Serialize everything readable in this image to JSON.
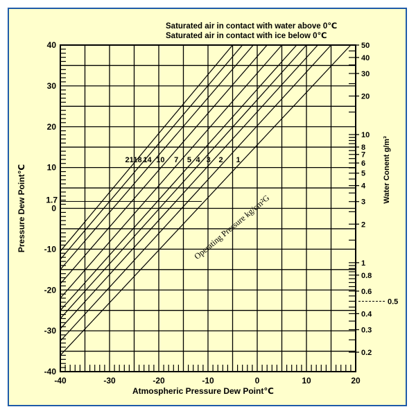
{
  "chart_data": {
    "type": "line",
    "title_lines": [
      "Saturated air in contact with water above 0℃",
      "Saturated air in contact with ice below 0℃"
    ],
    "xlabel": "Atmospheric Pressure Dew Point℃",
    "ylabel": "Pressure Dew Point℃",
    "y2label": "Water Conent g/m³",
    "xlim": [
      -40,
      20
    ],
    "ylim": [
      -40,
      40
    ],
    "x_ticks": [
      "-40",
      "-30",
      "-20",
      "-10",
      "0",
      "10",
      "20"
    ],
    "y_ticks": [
      "40",
      "30",
      "20",
      "10",
      "0",
      "-10",
      "-20",
      "-30",
      "-40"
    ],
    "y_extra_tick": "1.7",
    "right_ticks": [
      "50",
      "40",
      "30",
      "20",
      "10",
      "8",
      "7",
      "6",
      "5",
      "4",
      "3",
      "2",
      "1",
      "0.8",
      "0.6",
      "0.4",
      "0.3",
      "0.2"
    ],
    "right_extra_tick": "0.5",
    "diagonal_annotation": "Operating Pressure kg/cm²G",
    "grid": true,
    "series": [
      {
        "label": "21",
        "x": [
          -40,
          -5
        ],
        "y": [
          -10.5,
          40
        ]
      },
      {
        "label": "18",
        "x": [
          -40,
          -3
        ],
        "y": [
          -12.5,
          40
        ]
      },
      {
        "label": "14",
        "x": [
          -40,
          -0.8
        ],
        "y": [
          -15,
          40
        ]
      },
      {
        "label": "10",
        "x": [
          -40,
          2
        ],
        "y": [
          -18.5,
          40
        ]
      },
      {
        "label": "7",
        "x": [
          -40,
          5
        ],
        "y": [
          -22,
          40
        ]
      },
      {
        "label": "5",
        "x": [
          -40,
          8
        ],
        "y": [
          -25,
          40
        ]
      },
      {
        "label": "4",
        "x": [
          -40,
          10
        ],
        "y": [
          -27,
          40
        ]
      },
      {
        "label": "3",
        "x": [
          -40,
          12.3
        ],
        "y": [
          -29.5,
          40
        ]
      },
      {
        "label": "2",
        "x": [
          -40,
          15
        ],
        "y": [
          -32.5,
          40
        ]
      },
      {
        "label": "1",
        "x": [
          -40,
          19
        ],
        "y": [
          -36,
          40
        ]
      }
    ]
  }
}
